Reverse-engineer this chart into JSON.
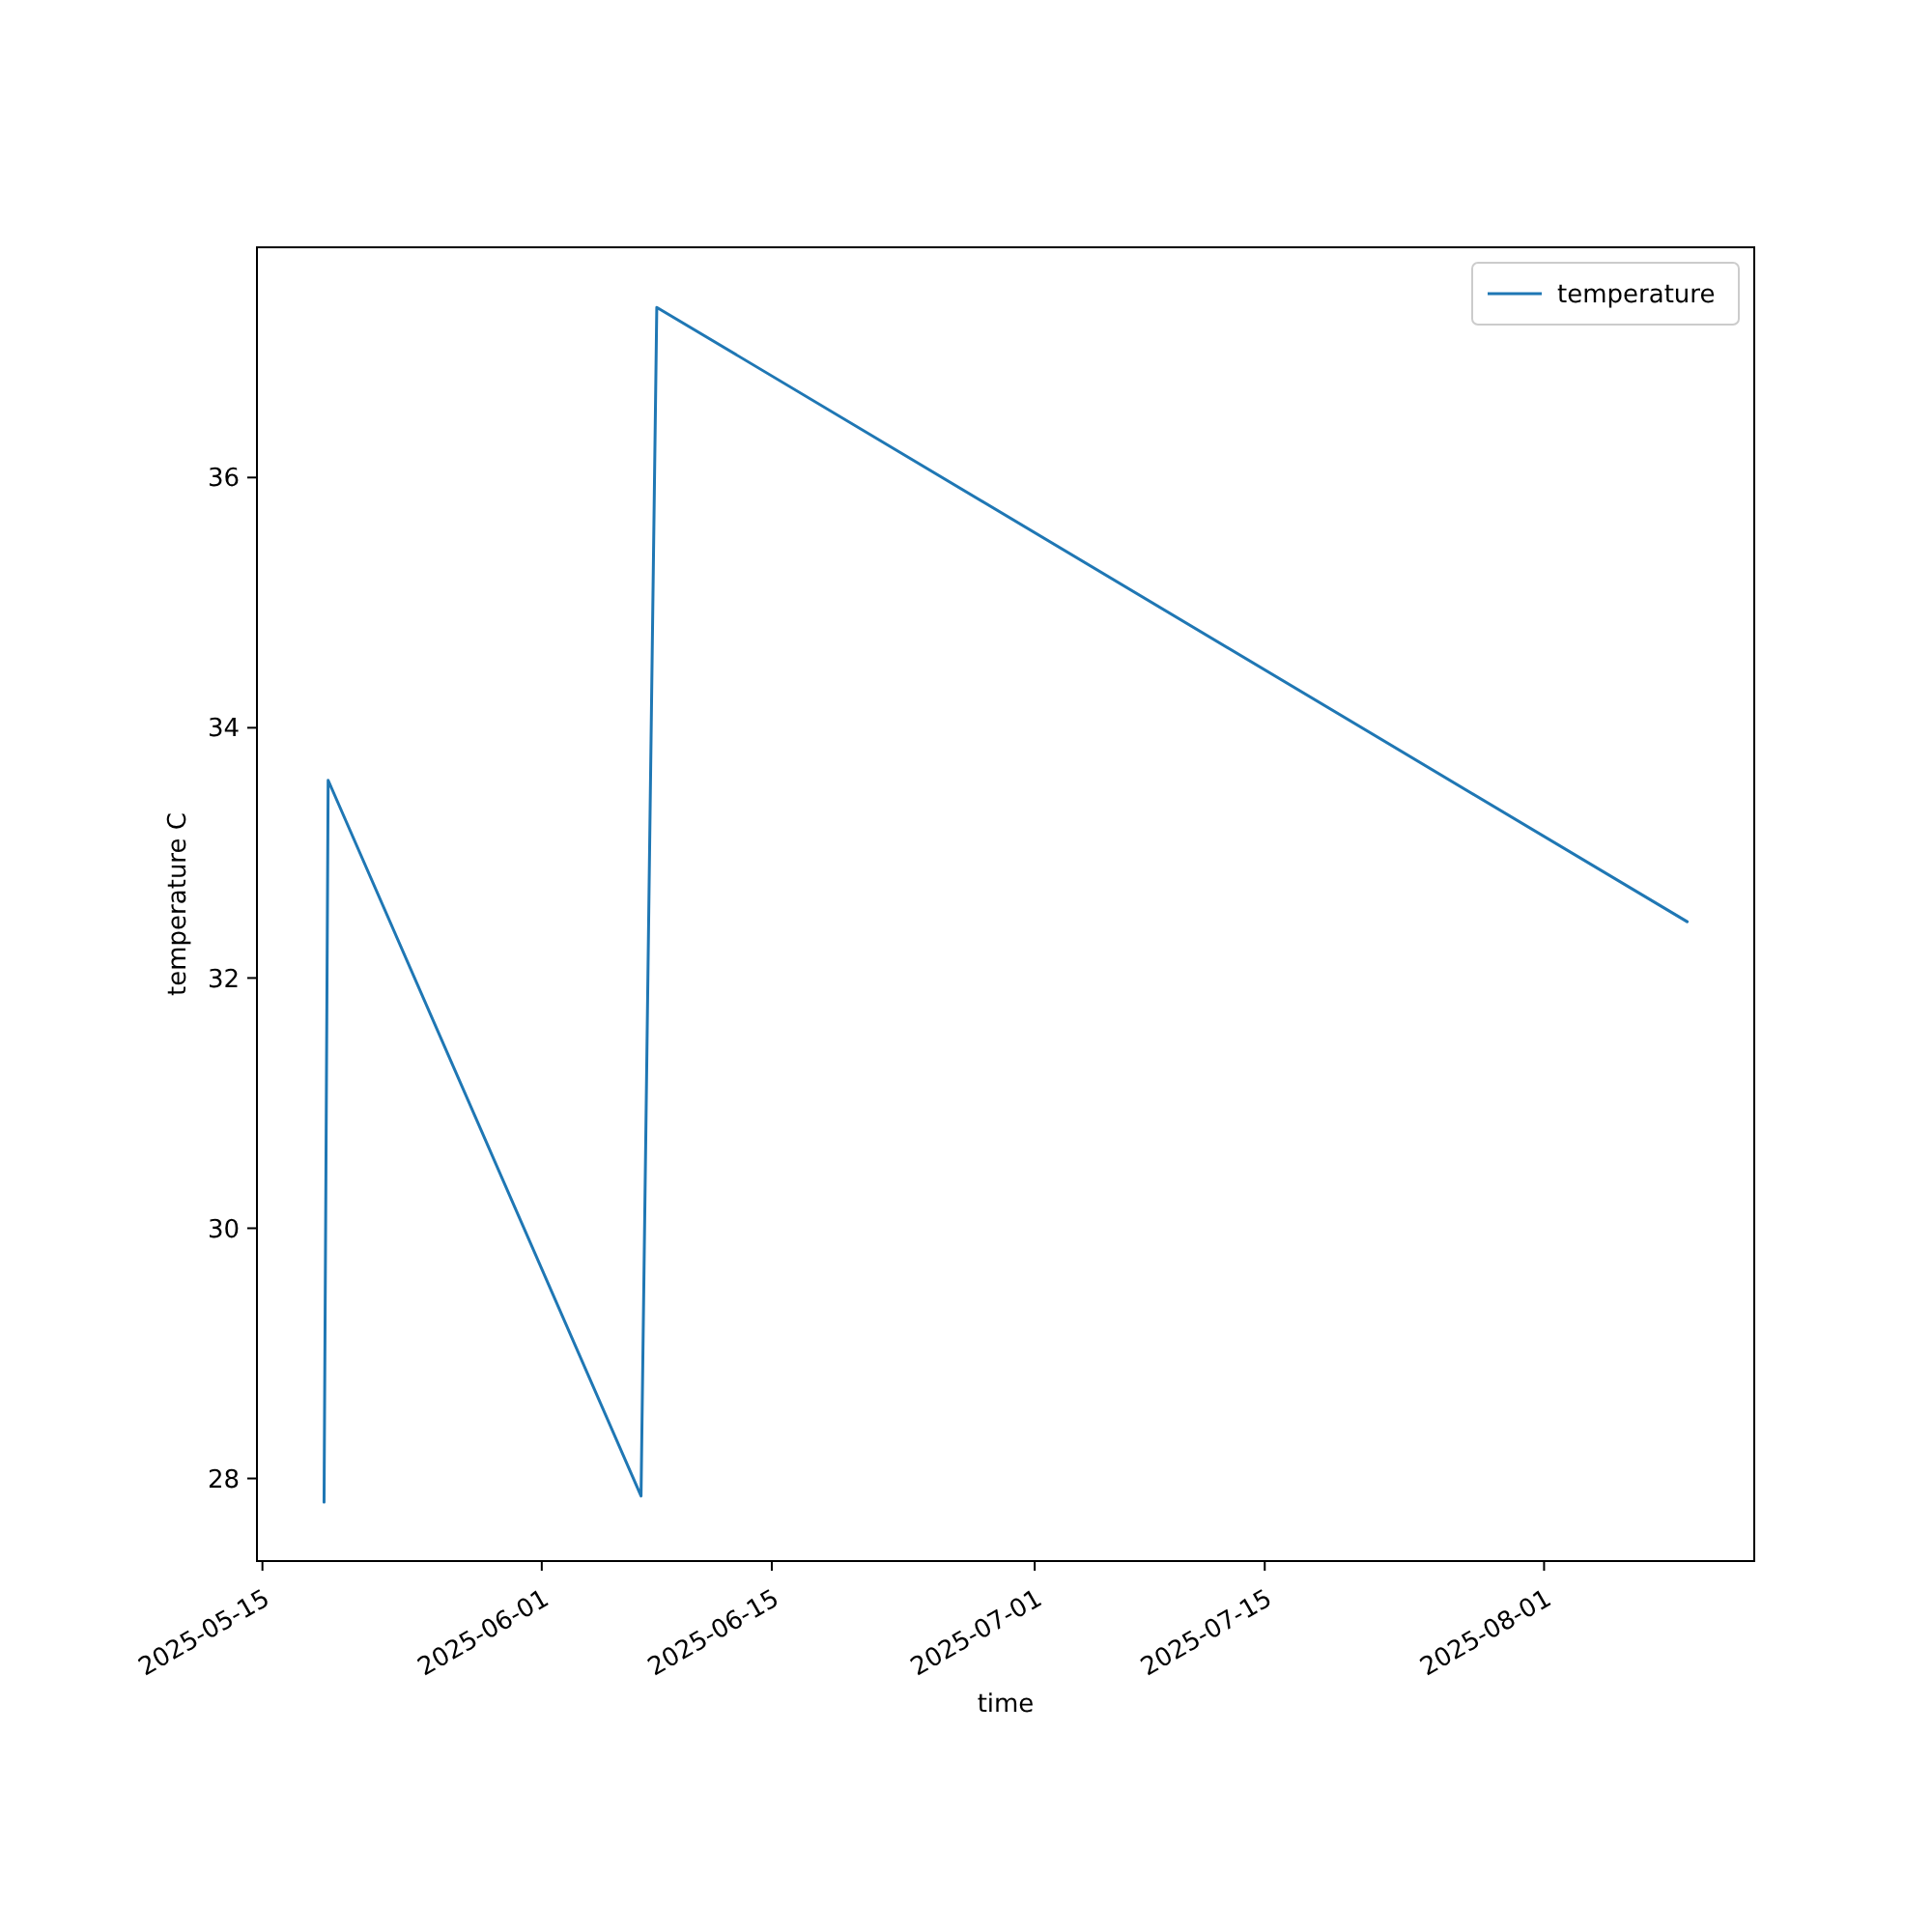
{
  "chart_data": {
    "type": "line",
    "xlabel": "time",
    "ylabel": "temperature C",
    "x": [
      "2025-05-18T18:00",
      "2025-05-19T00:00",
      "2025-06-07T01:00",
      "2025-06-08T00:00",
      "2025-08-09T17:00"
    ],
    "series": [
      {
        "name": "temperature",
        "color": "#1f77b4",
        "values": [
          27.81,
          33.58,
          27.86,
          37.36,
          32.45
        ]
      }
    ],
    "xlim": [
      "2025-05-14T16:00",
      "2025-08-13T19:00"
    ],
    "xticks": [
      {
        "value": "2025-05-15",
        "label": "2025-05-15"
      },
      {
        "value": "2025-06-01",
        "label": "2025-06-01"
      },
      {
        "value": "2025-06-15",
        "label": "2025-06-15"
      },
      {
        "value": "2025-07-01",
        "label": "2025-07-01"
      },
      {
        "value": "2025-07-15",
        "label": "2025-07-15"
      },
      {
        "value": "2025-08-01",
        "label": "2025-08-01"
      }
    ],
    "ylim": [
      27.34,
      37.84
    ],
    "yticks": [
      28,
      30,
      32,
      34,
      36
    ],
    "legend": "top right",
    "grid": false,
    "line_style": "solid",
    "marker": "none"
  }
}
